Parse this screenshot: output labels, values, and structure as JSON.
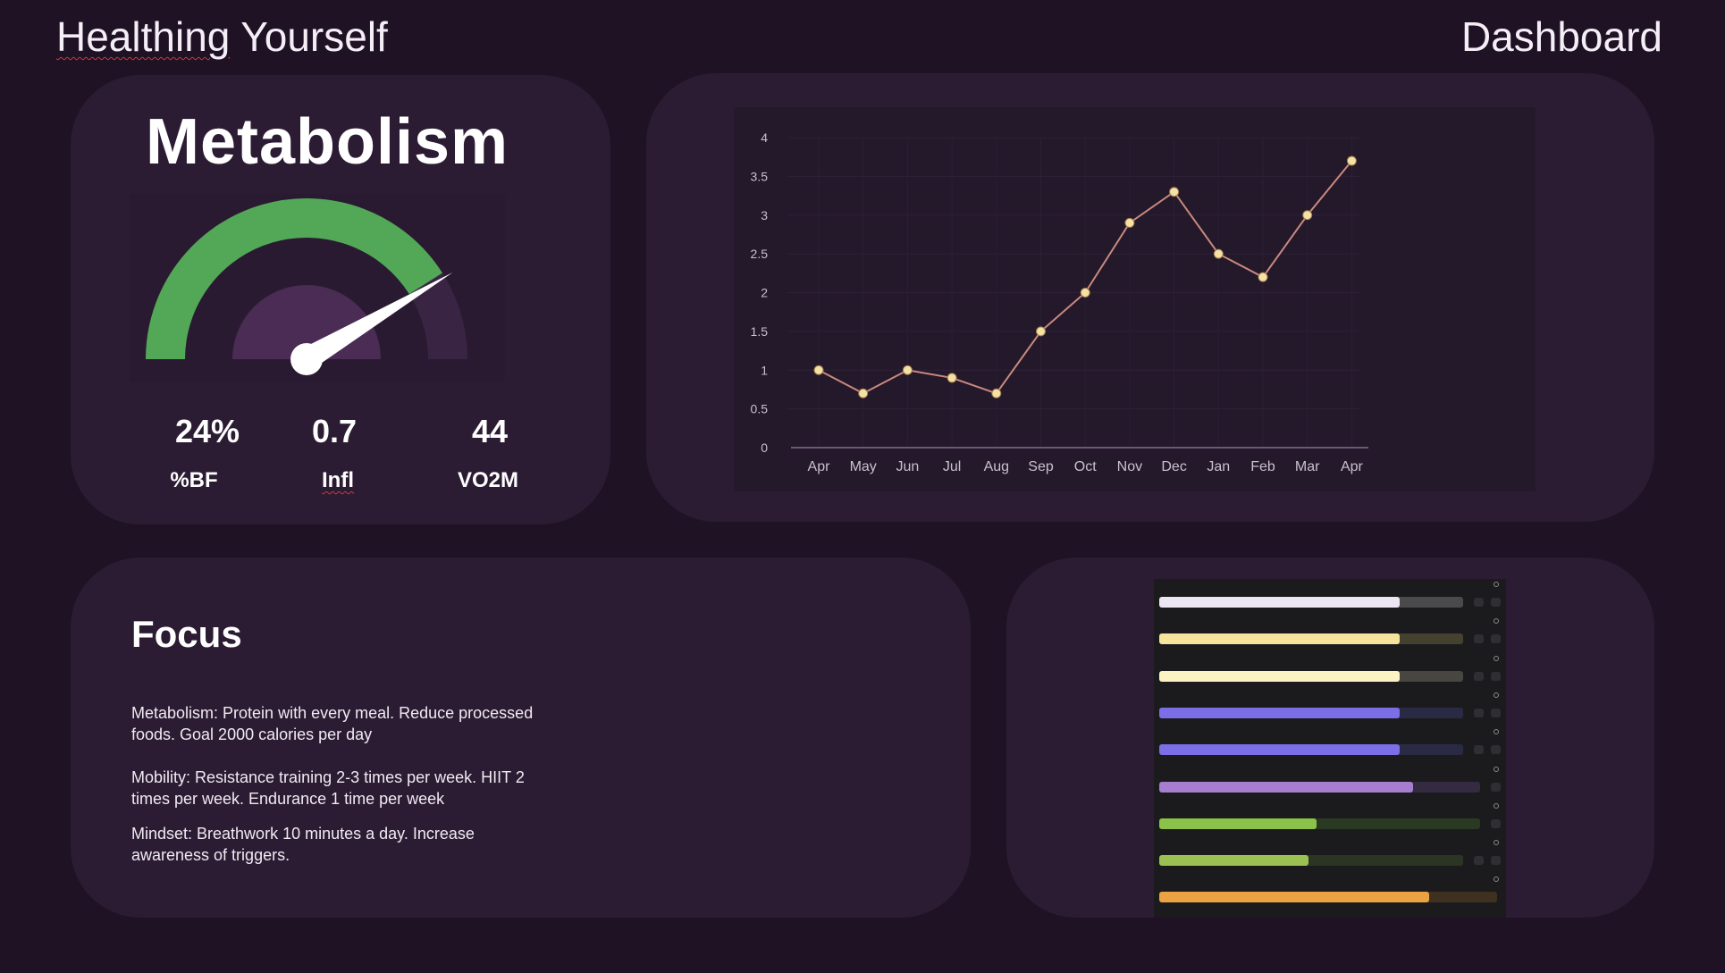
{
  "header": {
    "title_word1": "Healthing",
    "title_word2": " Yourself",
    "right_title": "Dashboard"
  },
  "metabolism": {
    "title": "Metabolism",
    "gauge": {
      "arc_color": "#52a857",
      "value_fraction": 0.82
    },
    "stats": [
      {
        "value": "24%",
        "label": "%BF"
      },
      {
        "value": "0.7",
        "label": "Infl"
      },
      {
        "value": "44",
        "label": "VO2M"
      }
    ]
  },
  "chart_data": {
    "type": "line",
    "categories": [
      "Apr",
      "May",
      "Jun",
      "Jul",
      "Aug",
      "Sep",
      "Oct",
      "Nov",
      "Dec",
      "Jan",
      "Feb",
      "Mar",
      "Apr"
    ],
    "series": [
      {
        "values": [
          1.0,
          0.7,
          1.0,
          0.9,
          0.7,
          1.5,
          2.0,
          2.9,
          3.3,
          2.5,
          2.2,
          3.0,
          3.7
        ]
      }
    ],
    "yticks": [
      "0",
      "0.5",
      "1",
      "1.5",
      "2",
      "2.5",
      "3",
      "3.5",
      "4"
    ],
    "ylim": [
      0,
      4
    ],
    "line_color": "#c98a7e",
    "point_color": "#f3e2a6",
    "grid": true
  },
  "focus": {
    "title": "Focus",
    "paragraphs": [
      "Metabolism: Protein with every meal. Reduce processed foods. Goal 2000 calories per day",
      "Mobility: Resistance training 2-3 times per week. HIIT 2 times per week.  Endurance 1 time per week",
      "Mindset: Breathwork 10 minutes a day. Increase awareness of  triggers."
    ]
  },
  "bars": [
    {
      "color": "#ece6f3",
      "track": "#4a4a4c",
      "fraction": 0.79,
      "buttons": 2
    },
    {
      "color": "#f7e49c",
      "track": "#45412f",
      "fraction": 0.79,
      "buttons": 2
    },
    {
      "color": "#fbf3c3",
      "track": "#474640",
      "fraction": 0.79,
      "buttons": 2
    },
    {
      "color": "#7b6ee6",
      "track": "#2b2a45",
      "fraction": 0.79,
      "buttons": 2
    },
    {
      "color": "#7b6ee6",
      "track": "#2b2a45",
      "fraction": 0.79,
      "buttons": 2
    },
    {
      "color": "#a77dcf",
      "track": "#352b40",
      "fraction": 0.79,
      "buttons": 1
    },
    {
      "color": "#8bc34a",
      "track": "#2a3a22",
      "fraction": 0.49,
      "buttons": 1
    },
    {
      "color": "#9bc152",
      "track": "#2c3423",
      "fraction": 0.49,
      "buttons": 2
    },
    {
      "color": "#eaa242",
      "track": "#3e3120",
      "fraction": 0.8,
      "buttons": 0
    }
  ]
}
